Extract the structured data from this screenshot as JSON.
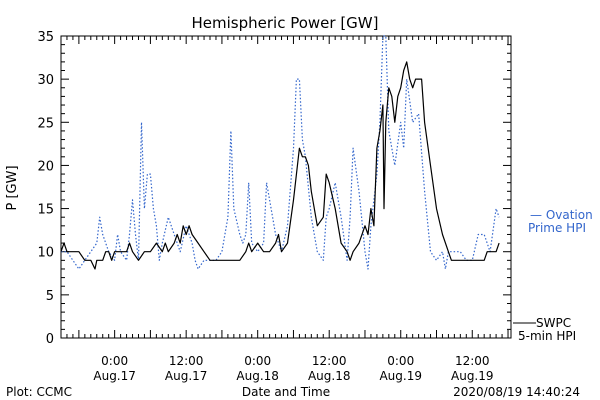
{
  "chart_data": {
    "type": "line",
    "title": "Hemispheric Power [GW]",
    "xlabel": "Date and Time",
    "ylabel": "P [GW]",
    "ylim": [
      0,
      35
    ],
    "y_ticks": [
      0,
      5,
      10,
      15,
      20,
      25,
      30,
      35
    ],
    "x_ticks": [
      {
        "hour": 6,
        "time": "0:00",
        "date": "Aug.17"
      },
      {
        "hour": 18,
        "time": "12:00",
        "date": "Aug.17"
      },
      {
        "hour": 30,
        "time": "0:00",
        "date": "Aug.18"
      },
      {
        "hour": 42,
        "time": "12:00",
        "date": "Aug.18"
      },
      {
        "hour": 54,
        "time": "0:00",
        "date": "Aug.19"
      },
      {
        "hour": 66,
        "time": "12:00",
        "date": "Aug.19"
      }
    ],
    "xlim_hours": [
      -3,
      72.5
    ],
    "series": [
      {
        "name": "SWPC 5-min HPI",
        "legend_line1": "SWPC",
        "legend_line2": "5-min HPI",
        "color": "#000000",
        "style": "solid",
        "points": [
          [
            -3,
            10
          ],
          [
            -2.5,
            11
          ],
          [
            -2,
            10
          ],
          [
            0,
            10
          ],
          [
            1,
            9
          ],
          [
            2,
            9
          ],
          [
            2.7,
            8
          ],
          [
            3,
            9
          ],
          [
            4,
            9
          ],
          [
            4.5,
            10
          ],
          [
            5,
            10
          ],
          [
            5.5,
            9
          ],
          [
            6,
            10
          ],
          [
            7,
            10
          ],
          [
            8,
            10
          ],
          [
            8.5,
            11
          ],
          [
            9,
            10
          ],
          [
            10,
            9
          ],
          [
            11,
            10
          ],
          [
            12,
            10
          ],
          [
            13,
            11
          ],
          [
            14,
            10
          ],
          [
            14.5,
            11
          ],
          [
            15,
            10
          ],
          [
            16,
            11
          ],
          [
            16.5,
            12
          ],
          [
            17,
            11
          ],
          [
            17.5,
            13
          ],
          [
            18,
            12
          ],
          [
            18.5,
            13
          ],
          [
            19,
            12
          ],
          [
            20,
            11
          ],
          [
            21,
            10
          ],
          [
            22,
            9
          ],
          [
            23,
            9
          ],
          [
            24,
            9
          ],
          [
            25,
            9
          ],
          [
            26,
            9
          ],
          [
            27,
            9
          ],
          [
            28,
            10
          ],
          [
            28.5,
            11
          ],
          [
            29,
            10
          ],
          [
            30,
            11
          ],
          [
            31,
            10
          ],
          [
            32,
            10
          ],
          [
            33,
            11
          ],
          [
            33.5,
            12
          ],
          [
            34,
            10
          ],
          [
            35,
            11
          ],
          [
            36,
            16
          ],
          [
            37,
            22
          ],
          [
            37.5,
            21
          ],
          [
            38,
            21
          ],
          [
            38.5,
            20
          ],
          [
            39,
            17
          ],
          [
            40,
            13
          ],
          [
            41,
            14
          ],
          [
            41.5,
            19
          ],
          [
            42,
            18
          ],
          [
            43,
            15
          ],
          [
            44,
            11
          ],
          [
            45,
            10
          ],
          [
            45.5,
            9
          ],
          [
            46,
            10
          ],
          [
            47,
            11
          ],
          [
            48,
            13
          ],
          [
            48.5,
            12
          ],
          [
            49,
            15
          ],
          [
            49.5,
            13
          ],
          [
            50,
            22
          ],
          [
            50.5,
            24
          ],
          [
            51,
            27
          ],
          [
            51.2,
            15
          ],
          [
            51.5,
            25
          ],
          [
            52,
            29
          ],
          [
            52.5,
            28
          ],
          [
            53,
            25
          ],
          [
            53.5,
            28
          ],
          [
            54,
            29
          ],
          [
            54.5,
            31
          ],
          [
            55,
            32
          ],
          [
            55.5,
            30
          ],
          [
            56,
            29
          ],
          [
            56.5,
            30
          ],
          [
            57,
            30
          ],
          [
            57.5,
            30
          ],
          [
            58,
            25
          ],
          [
            59,
            20
          ],
          [
            60,
            15
          ],
          [
            61,
            12
          ],
          [
            62,
            10
          ],
          [
            62.5,
            9
          ],
          [
            63,
            9
          ],
          [
            64,
            9
          ],
          [
            65,
            9
          ],
          [
            66,
            9
          ],
          [
            67,
            9
          ],
          [
            68,
            9
          ],
          [
            68.5,
            10
          ],
          [
            69,
            10
          ],
          [
            70,
            10
          ],
          [
            70.5,
            11
          ]
        ]
      },
      {
        "name": "Ovation Prime HPI",
        "legend_line1": "— Ovation",
        "legend_line2": "Prime HPI",
        "color": "#3366cc",
        "style": "dotted",
        "points": [
          [
            -3,
            10
          ],
          [
            -2,
            10
          ],
          [
            -1,
            9
          ],
          [
            0,
            8
          ],
          [
            1,
            9
          ],
          [
            2,
            10
          ],
          [
            3,
            11
          ],
          [
            3.5,
            14
          ],
          [
            4,
            12
          ],
          [
            5,
            10
          ],
          [
            6,
            9
          ],
          [
            6.5,
            12
          ],
          [
            7,
            10
          ],
          [
            8,
            9
          ],
          [
            8.5,
            12
          ],
          [
            9,
            16
          ],
          [
            9.5,
            12
          ],
          [
            10,
            9
          ],
          [
            10.5,
            25
          ],
          [
            11,
            15
          ],
          [
            11.5,
            19
          ],
          [
            12,
            19
          ],
          [
            12.5,
            15
          ],
          [
            13,
            13
          ],
          [
            13.5,
            9
          ],
          [
            14,
            11
          ],
          [
            15,
            14
          ],
          [
            16,
            12
          ],
          [
            17,
            10
          ],
          [
            18,
            13
          ],
          [
            19,
            11
          ],
          [
            19.5,
            9
          ],
          [
            20,
            8
          ],
          [
            21,
            9
          ],
          [
            22,
            9
          ],
          [
            23,
            9
          ],
          [
            24,
            10
          ],
          [
            25,
            14
          ],
          [
            25.5,
            24
          ],
          [
            26,
            15
          ],
          [
            27,
            12
          ],
          [
            27.5,
            11
          ],
          [
            28,
            12
          ],
          [
            28.5,
            18
          ],
          [
            29,
            11
          ],
          [
            30,
            10
          ],
          [
            31,
            11
          ],
          [
            31.5,
            18
          ],
          [
            32,
            16
          ],
          [
            33,
            12
          ],
          [
            34,
            10
          ],
          [
            35,
            13
          ],
          [
            36,
            22
          ],
          [
            36.5,
            30
          ],
          [
            37,
            30
          ],
          [
            37.5,
            23
          ],
          [
            38,
            21
          ],
          [
            39,
            14
          ],
          [
            40,
            10
          ],
          [
            41,
            9
          ],
          [
            41.5,
            14
          ],
          [
            42,
            15
          ],
          [
            43,
            18
          ],
          [
            44,
            14
          ],
          [
            45,
            9
          ],
          [
            45.5,
            14
          ],
          [
            46,
            22
          ],
          [
            47,
            17
          ],
          [
            48,
            10
          ],
          [
            48.5,
            8
          ],
          [
            49,
            13
          ],
          [
            50,
            19
          ],
          [
            50.5,
            25
          ],
          [
            51,
            35
          ],
          [
            51.5,
            35
          ],
          [
            52,
            24
          ],
          [
            53,
            20
          ],
          [
            54,
            25
          ],
          [
            54.5,
            22
          ],
          [
            55,
            30
          ],
          [
            56,
            25
          ],
          [
            57,
            26
          ],
          [
            58,
            17
          ],
          [
            59,
            10
          ],
          [
            60,
            9
          ],
          [
            61,
            10
          ],
          [
            61.5,
            8
          ],
          [
            62,
            10
          ],
          [
            63,
            10
          ],
          [
            64,
            10
          ],
          [
            65,
            9
          ],
          [
            66,
            9
          ],
          [
            67,
            12
          ],
          [
            68,
            12
          ],
          [
            69,
            10
          ],
          [
            70,
            15
          ],
          [
            70.5,
            14
          ]
        ]
      }
    ],
    "footer_left": "Plot: CCMC",
    "footer_right": "2020/08/19 14:40:24"
  }
}
